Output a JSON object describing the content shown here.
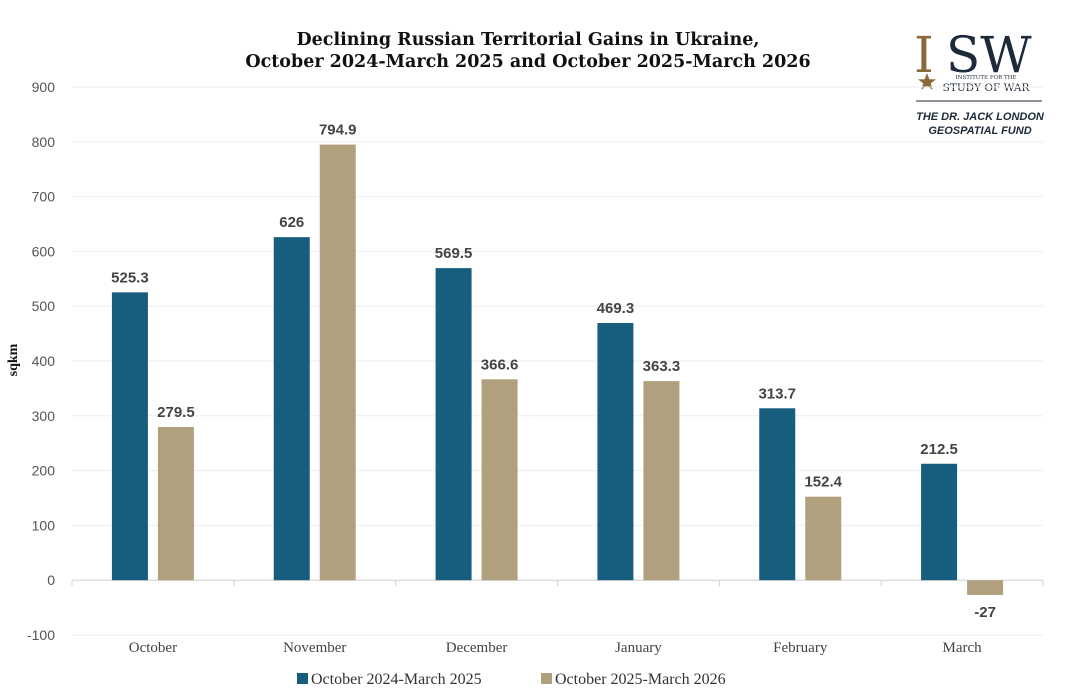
{
  "chart_data": {
    "type": "bar",
    "title_lines": [
      "Declining Russian Territorial Gains in Ukraine,",
      "October 2024-March 2025 and October 2025-March 2026"
    ],
    "ylabel": "sqkm",
    "xlabel": "",
    "ylim": [
      -100,
      900
    ],
    "yticks": [
      -100,
      0,
      100,
      200,
      300,
      400,
      500,
      600,
      700,
      800,
      900
    ],
    "grid": true,
    "legend_position": "bottom",
    "categories": [
      "October",
      "November",
      "December",
      "January",
      "February",
      "March"
    ],
    "series": [
      {
        "name": "October 2024-March 2025",
        "color": "#175e7e",
        "values": [
          525.3,
          626,
          569.5,
          469.3,
          313.7,
          212.5
        ],
        "labels": [
          "525.3",
          "626",
          "569.5",
          "469.3",
          "313.7",
          "212.5"
        ]
      },
      {
        "name": "October 2025-March 2026",
        "color": "#b0a07d",
        "values": [
          279.5,
          794.9,
          366.6,
          363.3,
          152.4,
          -27
        ],
        "labels": [
          "279.5",
          "794.9",
          "366.6",
          "363.3",
          "152.4",
          "-27"
        ]
      }
    ]
  },
  "logo": {
    "name": "ISW",
    "name_first": "I",
    "name_rest": "SW",
    "subtitle_top": "INSTITUTE FOR THE",
    "subtitle_main": "STUDY OF WAR",
    "icon": "star-icon",
    "fund_lines": [
      "THE DR. JACK LONDON",
      "GEOSPATIAL FUND"
    ],
    "colors": {
      "navy": "#1d2a3a",
      "bronze": "#8a6a3b"
    }
  }
}
